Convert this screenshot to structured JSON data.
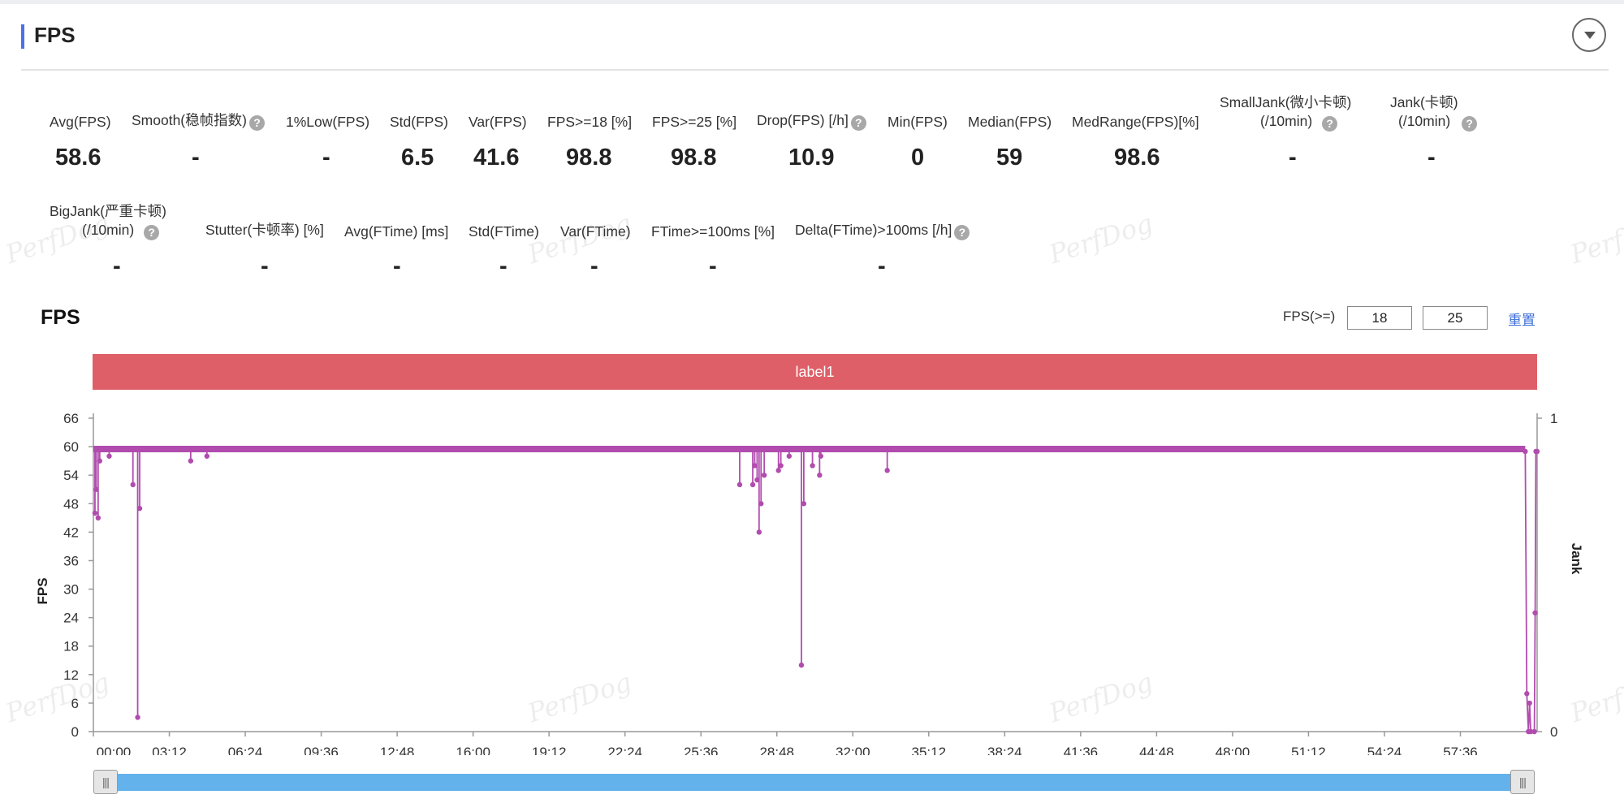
{
  "section": {
    "title": "FPS"
  },
  "metrics": [
    {
      "label": "Avg(FPS)",
      "value": "58.6",
      "help": false
    },
    {
      "label": "Smooth(稳帧指数)",
      "value": "-",
      "help": true
    },
    {
      "label": "1%Low(FPS)",
      "value": "-",
      "help": false
    },
    {
      "label": "Std(FPS)",
      "value": "6.5",
      "help": false
    },
    {
      "label": "Var(FPS)",
      "value": "41.6",
      "help": false
    },
    {
      "label": "FPS>=18 [%]",
      "value": "98.8",
      "help": false
    },
    {
      "label": "FPS>=25 [%]",
      "value": "98.8",
      "help": false
    },
    {
      "label": "Drop(FPS) [/h]",
      "value": "10.9",
      "help": true
    },
    {
      "label": "Min(FPS)",
      "value": "0",
      "help": false
    },
    {
      "label": "Median(FPS)",
      "value": "59",
      "help": false
    },
    {
      "label": "MedRange(FPS)[%]",
      "value": "98.6",
      "help": false
    },
    {
      "label": "SmallJank(微小卡顿)",
      "label2": "(/10min)",
      "value": "-",
      "help": true
    },
    {
      "label": "Jank(卡顿)",
      "label2": "(/10min)",
      "value": "-",
      "help": true
    },
    {
      "label": "BigJank(严重卡顿)",
      "label2": "(/10min)",
      "value": "-",
      "help": true
    },
    {
      "label": "Stutter(卡顿率) [%]",
      "value": "-",
      "help": false
    },
    {
      "label": "Avg(FTime) [ms]",
      "value": "-",
      "help": false
    },
    {
      "label": "Std(FTime)",
      "value": "-",
      "help": false
    },
    {
      "label": "Var(FTime)",
      "value": "-",
      "help": false
    },
    {
      "label": "FTime>=100ms [%]",
      "value": "-",
      "help": false
    },
    {
      "label": "Delta(FTime)>100ms [/h]",
      "value": "-",
      "help": true
    }
  ],
  "watermark": "PerfDog",
  "chart_controls": {
    "threshold_label": "FPS(>=)",
    "threshold_1": "18",
    "threshold_2": "25",
    "reset_label": "重置"
  },
  "chart_data": {
    "type": "line",
    "title": "FPS",
    "label_band": "label1",
    "ylabel": "FPS",
    "y2label": "Jank",
    "ylim": [
      0,
      66
    ],
    "yticks": [
      0,
      6,
      12,
      18,
      24,
      30,
      36,
      42,
      48,
      54,
      60,
      66
    ],
    "y2lim": [
      0,
      1
    ],
    "y2ticks": [
      0,
      1
    ],
    "xlim_seconds": [
      0,
      3650
    ],
    "xticks": [
      "00:00",
      "03:12",
      "06:24",
      "09:36",
      "12:48",
      "16:00",
      "19:12",
      "22:24",
      "25:36",
      "28:48",
      "32:00",
      "35:12",
      "38:24",
      "41:36",
      "44:48",
      "48:00",
      "51:12",
      "54:24",
      "57:36"
    ],
    "baseline_fps": 59.5,
    "baseline_range_seconds": [
      0,
      3620
    ],
    "dips": [
      {
        "t": 4,
        "fps": 46
      },
      {
        "t": 7,
        "fps": 51
      },
      {
        "t": 12,
        "fps": 45
      },
      {
        "t": 16,
        "fps": 57
      },
      {
        "t": 40,
        "fps": 58
      },
      {
        "t": 100,
        "fps": 52
      },
      {
        "t": 112,
        "fps": 3
      },
      {
        "t": 117,
        "fps": 47
      },
      {
        "t": 246,
        "fps": 57
      },
      {
        "t": 287,
        "fps": 58
      },
      {
        "t": 1634,
        "fps": 52
      },
      {
        "t": 1667,
        "fps": 52
      },
      {
        "t": 1672,
        "fps": 56
      },
      {
        "t": 1678,
        "fps": 53
      },
      {
        "t": 1683,
        "fps": 42
      },
      {
        "t": 1688,
        "fps": 48
      },
      {
        "t": 1696,
        "fps": 54
      },
      {
        "t": 1732,
        "fps": 55
      },
      {
        "t": 1738,
        "fps": 56
      },
      {
        "t": 1759,
        "fps": 58
      },
      {
        "t": 1790,
        "fps": 14
      },
      {
        "t": 1796,
        "fps": 48
      },
      {
        "t": 1818,
        "fps": 56
      },
      {
        "t": 1836,
        "fps": 54
      },
      {
        "t": 1839,
        "fps": 58
      },
      {
        "t": 2007,
        "fps": 55
      }
    ],
    "tail": [
      {
        "t": 3620,
        "fps": 59
      },
      {
        "t": 3624,
        "fps": 8
      },
      {
        "t": 3628,
        "fps": 0
      },
      {
        "t": 3631,
        "fps": 6
      },
      {
        "t": 3634,
        "fps": 0
      },
      {
        "t": 3643,
        "fps": 0
      },
      {
        "t": 3645,
        "fps": 25
      },
      {
        "t": 3647,
        "fps": 59
      },
      {
        "t": 3650,
        "fps": 59
      }
    ],
    "color": "#b14cae"
  }
}
